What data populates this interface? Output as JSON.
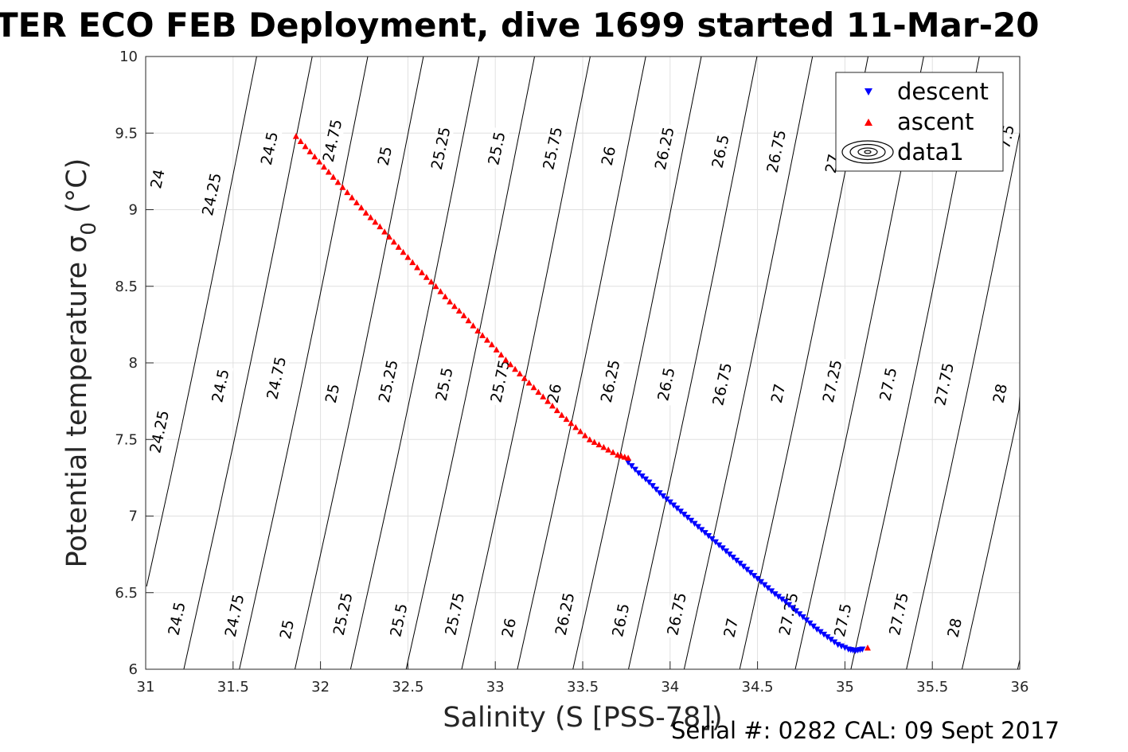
{
  "chart_data": {
    "type": "scatter",
    "title": "TER ECO FEB Deployment, dive 1699 started 11-Mar-20",
    "xlabel": "Salinity (S [PSS-78])",
    "ylabel_main": "Potential temperature ",
    "ylabel_sigma": "σ",
    "ylabel_sub": "0",
    "ylabel_unit": " (°C)",
    "xlim": [
      31,
      36
    ],
    "ylim": [
      6,
      10
    ],
    "xticks": [
      "31",
      "31.5",
      "32",
      "32.5",
      "33",
      "33.5",
      "34",
      "34.5",
      "35",
      "35.5",
      "36"
    ],
    "yticks": [
      "6",
      "6.5",
      "7",
      "7.5",
      "8",
      "8.5",
      "9",
      "9.5",
      "10"
    ],
    "grid": true,
    "legend_placement": "top-right",
    "series": [
      {
        "name": "descent",
        "marker": "triangle-down",
        "color": "#0000ff",
        "x": [
          33.76,
          33.82,
          33.88,
          33.94,
          34.0,
          34.06,
          34.12,
          34.18,
          34.24,
          34.3,
          34.36,
          34.42,
          34.48,
          34.54,
          34.6,
          34.66,
          34.72,
          34.78,
          34.84,
          34.9,
          34.96,
          35.02,
          35.06,
          35.1
        ],
        "y": [
          7.35,
          7.28,
          7.22,
          7.15,
          7.09,
          7.03,
          6.97,
          6.91,
          6.85,
          6.79,
          6.73,
          6.67,
          6.61,
          6.55,
          6.49,
          6.44,
          6.38,
          6.32,
          6.26,
          6.21,
          6.16,
          6.13,
          6.12,
          6.13
        ]
      },
      {
        "name": "ascent",
        "marker": "triangle-up",
        "color": "#ff0000",
        "x": [
          31.86,
          31.94,
          32.02,
          32.1,
          32.18,
          32.26,
          32.34,
          32.42,
          32.5,
          32.58,
          32.66,
          32.74,
          32.82,
          32.9,
          32.98,
          33.06,
          33.14,
          33.22,
          33.3,
          33.38,
          33.46,
          33.54,
          33.62,
          33.7,
          33.76,
          35.13
        ],
        "y": [
          9.48,
          9.38,
          9.28,
          9.18,
          9.08,
          8.98,
          8.89,
          8.79,
          8.69,
          8.59,
          8.5,
          8.4,
          8.31,
          8.21,
          8.12,
          8.02,
          7.93,
          7.84,
          7.75,
          7.66,
          7.58,
          7.5,
          7.45,
          7.4,
          7.38,
          6.14
        ]
      },
      {
        "name": "data1",
        "type": "contour",
        "color": "#000000"
      }
    ],
    "contour_labels": [
      {
        "text": "24",
        "s": 31.07,
        "t": 9.2
      },
      {
        "text": "24.25",
        "s": 31.38,
        "t": 9.1
      },
      {
        "text": "24.5",
        "s": 31.71,
        "t": 9.4
      },
      {
        "text": "24.75",
        "s": 32.07,
        "t": 9.45
      },
      {
        "text": "25",
        "s": 32.37,
        "t": 9.35
      },
      {
        "text": "25.25",
        "s": 32.69,
        "t": 9.4
      },
      {
        "text": "25.5",
        "s": 33.01,
        "t": 9.4
      },
      {
        "text": "25.75",
        "s": 33.33,
        "t": 9.4
      },
      {
        "text": "26",
        "s": 33.65,
        "t": 9.35
      },
      {
        "text": "26.25",
        "s": 33.97,
        "t": 9.4
      },
      {
        "text": "26.5",
        "s": 34.29,
        "t": 9.38
      },
      {
        "text": "26.75",
        "s": 34.61,
        "t": 9.38
      },
      {
        "text": "27",
        "s": 34.93,
        "t": 9.3
      },
      {
        "text": "24.25",
        "s": 31.08,
        "t": 7.55
      },
      {
        "text": "24.5",
        "s": 31.43,
        "t": 7.85
      },
      {
        "text": "24.75",
        "s": 31.75,
        "t": 7.9
      },
      {
        "text": "25",
        "s": 32.07,
        "t": 7.8
      },
      {
        "text": "25.25",
        "s": 32.39,
        "t": 7.88
      },
      {
        "text": "25.5",
        "s": 32.71,
        "t": 7.86
      },
      {
        "text": "25.75",
        "s": 33.03,
        "t": 7.88
      },
      {
        "text": "26",
        "s": 33.34,
        "t": 7.8
      },
      {
        "text": "26.25",
        "s": 33.66,
        "t": 7.88
      },
      {
        "text": "26.5",
        "s": 33.98,
        "t": 7.86
      },
      {
        "text": "26.75",
        "s": 34.3,
        "t": 7.86
      },
      {
        "text": "27",
        "s": 34.62,
        "t": 7.8
      },
      {
        "text": "27.25",
        "s": 34.93,
        "t": 7.88
      },
      {
        "text": "27.5",
        "s": 35.25,
        "t": 7.86
      },
      {
        "text": "27.75",
        "s": 35.57,
        "t": 7.86
      },
      {
        "text": "28",
        "s": 35.89,
        "t": 7.8
      },
      {
        "text": "24.5",
        "s": 31.18,
        "t": 6.33
      },
      {
        "text": "24.75",
        "s": 31.51,
        "t": 6.35
      },
      {
        "text": "25",
        "s": 31.81,
        "t": 6.26
      },
      {
        "text": "25.25",
        "s": 32.13,
        "t": 6.36
      },
      {
        "text": "25.5",
        "s": 32.45,
        "t": 6.32
      },
      {
        "text": "25.75",
        "s": 32.77,
        "t": 6.36
      },
      {
        "text": "26",
        "s": 33.08,
        "t": 6.27
      },
      {
        "text": "26.25",
        "s": 33.4,
        "t": 6.36
      },
      {
        "text": "26.5",
        "s": 33.72,
        "t": 6.32
      },
      {
        "text": "26.75",
        "s": 34.04,
        "t": 6.36
      },
      {
        "text": "27",
        "s": 34.35,
        "t": 6.27
      },
      {
        "text": "27.25",
        "s": 34.68,
        "t": 6.36
      },
      {
        "text": "27.5",
        "s": 34.99,
        "t": 6.32
      },
      {
        "text": "27.75",
        "s": 35.31,
        "t": 6.36
      },
      {
        "text": "28",
        "s": 35.63,
        "t": 6.27
      }
    ],
    "top_right_partial_label": "7.5"
  },
  "footer": "Serial #: 0282  CAL: 09 Sept 2017"
}
